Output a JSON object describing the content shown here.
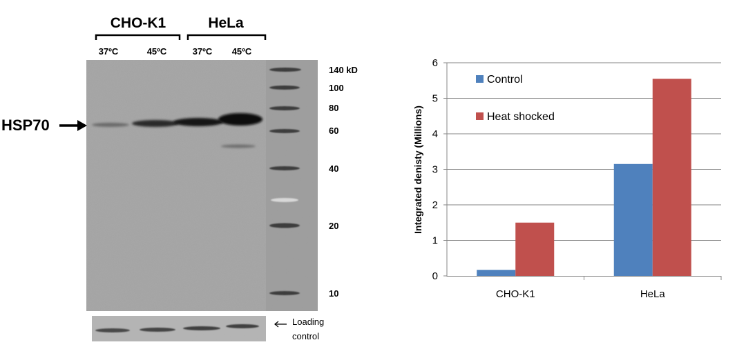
{
  "blot": {
    "cell_lines": [
      "CHO-K1",
      "HeLa"
    ],
    "lanes": [
      "37ºC",
      "45ºC",
      "37ºC",
      "45ºC"
    ],
    "protein_label": "HSP70",
    "markers": [
      "140 kD",
      "100",
      "80",
      "60",
      "40",
      "20",
      "10"
    ],
    "loading_control_label": [
      "Loading",
      "control"
    ]
  },
  "chart_data": {
    "type": "bar",
    "categories": [
      "CHO-K1",
      "HeLa"
    ],
    "series": [
      {
        "name": "Control",
        "values": [
          0.17,
          3.15
        ],
        "color": "#4F81BD"
      },
      {
        "name": "Heat shocked",
        "values": [
          1.5,
          5.55
        ],
        "color": "#C0504D"
      }
    ],
    "ylabel": "Integrated denisty (Millions)",
    "ylim": [
      0,
      6
    ],
    "yticks": [
      "0",
      "1",
      "2",
      "3",
      "4",
      "5",
      "6"
    ],
    "grid": true,
    "legend_position": "top-left inside"
  }
}
